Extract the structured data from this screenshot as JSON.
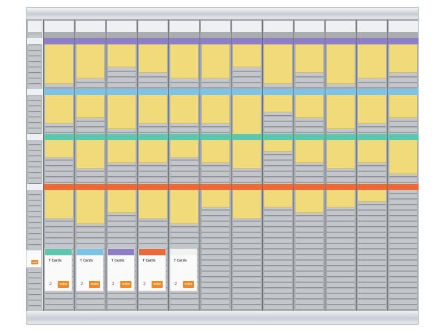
{
  "colors": {
    "card": "#f1da7a",
    "bands": [
      "#8e7fc4",
      "#7ec3e6",
      "#5ec6ad",
      "#ec6a3a"
    ],
    "board": "#a9adb2",
    "slot": "#c3c6ca"
  },
  "columns": 12,
  "cards_per_section": [
    [
      7,
      6,
      4,
      5,
      6,
      6,
      4,
      7,
      5,
      7,
      6,
      5
    ],
    [
      5,
      4,
      6,
      5,
      5,
      5,
      7,
      3,
      4,
      6,
      5,
      4
    ],
    [
      3,
      5,
      4,
      4,
      3,
      4,
      5,
      2,
      4,
      5,
      4,
      6
    ],
    [
      5,
      6,
      4,
      5,
      6,
      3,
      5,
      3,
      4,
      3,
      2,
      0
    ]
  ],
  "packs": [
    {
      "label": "T Cards",
      "count": "2",
      "brand": "nobo",
      "lid": "#5ec6ad"
    },
    {
      "label": "T Cards",
      "count": "2",
      "brand": "nobo",
      "lid": "#7ec3e6"
    },
    {
      "label": "T Cards",
      "count": "2",
      "brand": "nobo",
      "lid": "#8e7fc4"
    },
    {
      "label": "T Cards",
      "count": "2",
      "brand": "nobo",
      "lid": "#ec6a3a"
    },
    {
      "label": "T Cards",
      "count": "2",
      "brand": "nobo",
      "lid": "#f2f2f2"
    }
  ],
  "index_pack": {
    "brand": "nobo"
  }
}
